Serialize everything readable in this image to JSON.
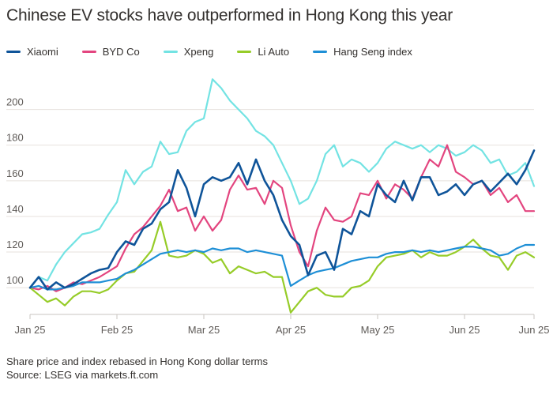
{
  "title": "Chinese EV stocks have outperformed in Hong Kong this year",
  "footer": {
    "note": "Share price and index rebased in Hong Kong dollar terms",
    "source": "Source: LSEG via markets.ft.com"
  },
  "chart_data": {
    "type": "line",
    "title": "Chinese EV stocks have outperformed in Hong Kong this year",
    "xlabel": "",
    "ylabel": "",
    "ylim": [
      85,
      218
    ],
    "yticks": [
      100,
      120,
      140,
      160,
      180,
      200
    ],
    "xticks": [
      "Jan 25",
      "Feb 25",
      "Mar 25",
      "Apr 25",
      "May 25",
      "Jun 25",
      "Jun 25"
    ],
    "grid": true,
    "legend_position": "top-left",
    "x_range": [
      0,
      29
    ],
    "series": [
      {
        "name": "Xiaomi",
        "color": "#0f5499",
        "x": [
          0,
          0.5,
          1,
          1.5,
          2,
          2.5,
          3,
          3.5,
          4,
          4.5,
          5,
          5.5,
          6,
          6.5,
          7,
          7.5,
          8,
          8.5,
          9,
          9.5,
          10,
          10.5,
          11,
          11.5,
          12,
          12.5,
          13,
          13.5,
          14,
          14.5,
          15,
          15.5,
          16,
          16.5,
          17,
          17.5,
          18,
          18.5,
          19,
          19.5,
          20,
          20.5,
          21,
          21.5,
          22,
          22.5,
          23,
          23.5,
          24,
          24.5,
          25,
          25.5,
          26,
          26.5,
          27,
          27.5,
          28,
          28.5,
          29
        ],
        "values": [
          100,
          106,
          99,
          103,
          100,
          102,
          105,
          108,
          110,
          111,
          120,
          126,
          124,
          133,
          136,
          144,
          148,
          166,
          156,
          140,
          158,
          162,
          160,
          162,
          170,
          158,
          172,
          160,
          152,
          138,
          129,
          124,
          107,
          118,
          120,
          110,
          133,
          130,
          143,
          140,
          158,
          152,
          148,
          160,
          149,
          162,
          162,
          152,
          154,
          158,
          152,
          158,
          160,
          154,
          159,
          164,
          158,
          166,
          177
        ]
      },
      {
        "name": "BYD Co",
        "color": "#e3457f",
        "x": [
          0,
          0.5,
          1,
          1.5,
          2,
          2.5,
          3,
          3.5,
          4,
          4.5,
          5,
          5.5,
          6,
          6.5,
          7,
          7.5,
          8,
          8.5,
          9,
          9.5,
          10,
          10.5,
          11,
          11.5,
          12,
          12.5,
          13,
          13.5,
          14,
          14.5,
          15,
          15.5,
          16,
          16.5,
          17,
          17.5,
          18,
          18.5,
          19,
          19.5,
          20,
          20.5,
          21,
          21.5,
          22,
          22.5,
          23,
          23.5,
          24,
          24.5,
          25,
          25.5,
          26,
          26.5,
          27,
          27.5,
          28,
          28.5,
          29
        ],
        "values": [
          100,
          99,
          101,
          98,
          100,
          103,
          102,
          104,
          106,
          109,
          112,
          122,
          130,
          134,
          140,
          146,
          155,
          143,
          145,
          132,
          140,
          132,
          138,
          155,
          163,
          155,
          156,
          147,
          160,
          156,
          135,
          120,
          112,
          132,
          145,
          138,
          137,
          140,
          153,
          152,
          160,
          150,
          158,
          155,
          150,
          162,
          172,
          168,
          180,
          165,
          162,
          158,
          160,
          152,
          156,
          148,
          152,
          143,
          143
        ]
      },
      {
        "name": "Xpeng",
        "color": "#73e3e3",
        "x": [
          0,
          0.5,
          1,
          1.5,
          2,
          2.5,
          3,
          3.5,
          4,
          4.5,
          5,
          5.5,
          6,
          6.5,
          7,
          7.5,
          8,
          8.5,
          9,
          9.5,
          10,
          10.5,
          11,
          11.5,
          12,
          12.5,
          13,
          13.5,
          14,
          14.5,
          15,
          15.5,
          16,
          16.5,
          17,
          17.5,
          18,
          18.5,
          19,
          19.5,
          20,
          20.5,
          21,
          21.5,
          22,
          22.5,
          23,
          23.5,
          24,
          24.5,
          25,
          25.5,
          26,
          26.5,
          27,
          27.5,
          28,
          28.5,
          29
        ],
        "values": [
          100,
          106,
          104,
          113,
          120,
          125,
          130,
          131,
          133,
          141,
          148,
          166,
          158,
          165,
          168,
          182,
          175,
          176,
          188,
          193,
          195,
          217,
          212,
          205,
          200,
          195,
          188,
          185,
          180,
          170,
          160,
          147,
          150,
          160,
          175,
          180,
          168,
          172,
          170,
          165,
          170,
          178,
          182,
          180,
          178,
          180,
          176,
          180,
          178,
          174,
          176,
          180,
          177,
          170,
          172,
          163,
          165,
          170,
          157
        ]
      },
      {
        "name": "Li Auto",
        "color": "#96cc28",
        "x": [
          0,
          0.5,
          1,
          1.5,
          2,
          2.5,
          3,
          3.5,
          4,
          4.5,
          5,
          5.5,
          6,
          6.5,
          7,
          7.5,
          8,
          8.5,
          9,
          9.5,
          10,
          10.5,
          11,
          11.5,
          12,
          12.5,
          13,
          13.5,
          14,
          14.5,
          15,
          15.5,
          16,
          16.5,
          17,
          17.5,
          18,
          18.5,
          19,
          19.5,
          20,
          20.5,
          21,
          21.5,
          22,
          22.5,
          23,
          23.5,
          24,
          24.5,
          25,
          25.5,
          26,
          26.5,
          27,
          27.5,
          28,
          28.5,
          29
        ],
        "values": [
          100,
          96,
          92,
          94,
          90,
          95,
          98,
          98,
          97,
          99,
          104,
          108,
          109,
          115,
          121,
          137,
          118,
          117,
          118,
          121,
          119,
          114,
          116,
          108,
          112,
          110,
          108,
          109,
          106,
          106,
          86,
          92,
          98,
          100,
          96,
          95,
          95,
          100,
          101,
          104,
          112,
          117,
          118,
          119,
          121,
          117,
          120,
          118,
          118,
          120,
          123,
          127,
          122,
          118,
          117,
          110,
          118,
          120,
          117
        ]
      },
      {
        "name": "Hang Seng index",
        "color": "#1e8fd6",
        "x": [
          0,
          0.5,
          1,
          1.5,
          2,
          2.5,
          3,
          3.5,
          4,
          4.5,
          5,
          5.5,
          6,
          6.5,
          7,
          7.5,
          8,
          8.5,
          9,
          9.5,
          10,
          10.5,
          11,
          11.5,
          12,
          12.5,
          13,
          13.5,
          14,
          14.5,
          15,
          15.5,
          16,
          16.5,
          17,
          17.5,
          18,
          18.5,
          19,
          19.5,
          20,
          20.5,
          21,
          21.5,
          22,
          22.5,
          23,
          23.5,
          24,
          24.5,
          25,
          25.5,
          26,
          26.5,
          27,
          27.5,
          28,
          28.5,
          29
        ],
        "values": [
          100,
          101,
          99,
          99,
          100,
          101,
          103,
          103,
          103,
          104,
          105,
          108,
          110,
          113,
          116,
          119,
          120,
          121,
          120,
          121,
          120,
          122,
          121,
          122,
          122,
          120,
          121,
          120,
          119,
          118,
          101,
          104,
          107,
          109,
          110,
          111,
          113,
          115,
          116,
          117,
          117,
          119,
          120,
          120,
          121,
          120,
          121,
          120,
          121,
          122,
          123,
          123,
          122,
          121,
          118,
          119,
          122,
          124,
          124
        ]
      }
    ]
  }
}
